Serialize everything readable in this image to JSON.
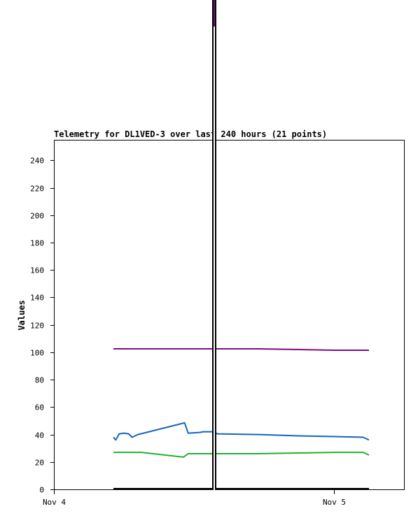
{
  "chart_data": {
    "type": "line",
    "title": "Telemetry for DL1VED-3 over last 240 hours (21 points)",
    "xlabel": "",
    "ylabel": "Values",
    "ylim": [
      0,
      255
    ],
    "yticks": [
      0,
      20,
      40,
      60,
      80,
      100,
      120,
      140,
      160,
      180,
      200,
      220,
      240
    ],
    "x_range_hours": [
      0,
      30
    ],
    "xticks": [
      {
        "label": "Nov 4",
        "x": 0
      },
      {
        "label": "Nov 5",
        "x": 24
      }
    ],
    "grid": false,
    "legend": "none",
    "series": [
      {
        "color": "#7b0d86",
        "points": [
          [
            5.1,
            102.5
          ],
          [
            13.5,
            102.5
          ],
          [
            17.5,
            102.5
          ],
          [
            21,
            102
          ],
          [
            24,
            101.5
          ],
          [
            27,
            101.5
          ]
        ]
      },
      {
        "color": "#1565c0",
        "points": [
          [
            5.1,
            38
          ],
          [
            5.3,
            36
          ],
          [
            5.6,
            40.5
          ],
          [
            6.0,
            41
          ],
          [
            6.4,
            40.5
          ],
          [
            6.7,
            38
          ],
          [
            7.2,
            40
          ],
          [
            11.2,
            48.5
          ],
          [
            11.5,
            41
          ],
          [
            12.5,
            41.5
          ],
          [
            12.8,
            42
          ],
          [
            13.7,
            42
          ],
          [
            14.0,
            40.5
          ],
          [
            17.5,
            40
          ],
          [
            21,
            39
          ],
          [
            24,
            38.5
          ],
          [
            26.5,
            38
          ],
          [
            27,
            36
          ]
        ]
      },
      {
        "color": "#22b02c",
        "points": [
          [
            5.1,
            27
          ],
          [
            7.5,
            27
          ],
          [
            11.1,
            23.5
          ],
          [
            11.5,
            26
          ],
          [
            17.5,
            26
          ],
          [
            21,
            26.5
          ],
          [
            24,
            27
          ],
          [
            26.5,
            27
          ],
          [
            27,
            25
          ]
        ]
      },
      {
        "color": "#000000",
        "points": [
          [
            5.1,
            0.5
          ],
          [
            27,
            0.5
          ]
        ]
      }
    ],
    "marker_x": 13.7
  }
}
